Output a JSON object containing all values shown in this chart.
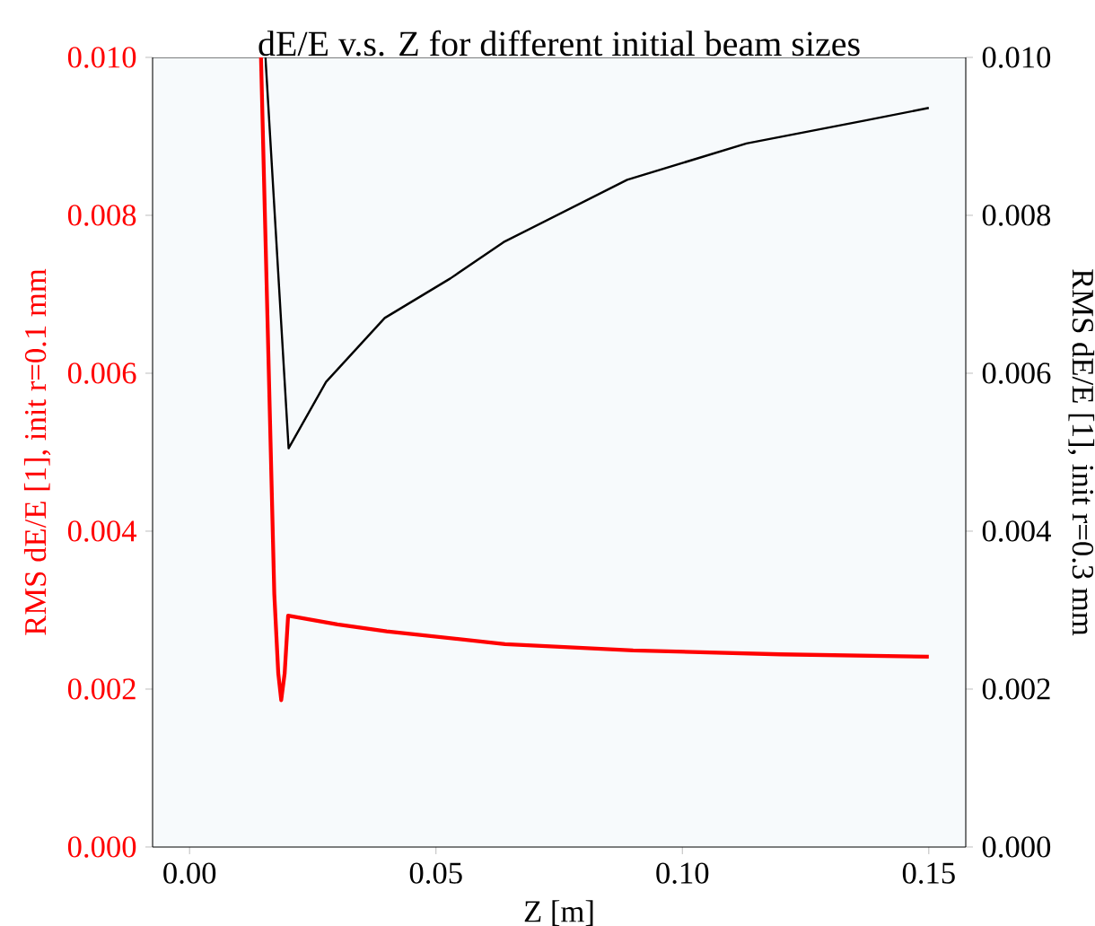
{
  "chart_data": {
    "type": "line",
    "title": "dE/E v.s. Z for different initial beam sizes",
    "xlabel": "Z [m]",
    "ylabel": "RMS dE/E [1], init r=0.1 mm",
    "y2label": "RMS dE/E [1], init r=0.3 mm",
    "xlim": [
      -0.0075,
      0.1575
    ],
    "xticks": [
      {
        "value": 0,
        "label": "0.00"
      },
      0.05,
      {
        "value": 0.1,
        "label": "0.10"
      },
      0.15
    ],
    "ylim": [
      0,
      0.01
    ],
    "yticks": [
      {
        "value": 0,
        "label": "0.000"
      },
      0.002,
      0.004,
      0.006,
      0.008,
      {
        "value": 0.01,
        "label": "0.010"
      }
    ],
    "y2lim": [
      0,
      0.01
    ],
    "y2ticks": [
      {
        "value": 0,
        "label": "0.000"
      },
      0.002,
      0.004,
      0.006,
      0.008,
      {
        "value": 0.01,
        "label": "0.010"
      }
    ],
    "series": [
      {
        "axis": "y",
        "color": "#ff0000",
        "x": [
          0.0145,
          0.0172,
          0.018,
          0.0186,
          0.0193,
          0.02,
          0.03,
          0.04,
          0.064,
          0.09,
          0.12,
          0.15
        ],
        "values": [
          0.01,
          0.0032,
          0.0022,
          0.00186,
          0.0022,
          0.00293,
          0.00282,
          0.00273,
          0.00257,
          0.00249,
          0.00244,
          0.00241
        ]
      },
      {
        "axis": "y2",
        "color": "#000000",
        "x": [
          0.0154,
          0.0201,
          0.0277,
          0.0396,
          0.0529,
          0.0637,
          0.0888,
          0.113,
          0.137,
          0.15
        ],
        "values": [
          0.01,
          0.00505,
          0.00589,
          0.0067,
          0.0072,
          0.00766,
          0.00845,
          0.00891,
          0.0092,
          0.00936
        ]
      }
    ]
  }
}
